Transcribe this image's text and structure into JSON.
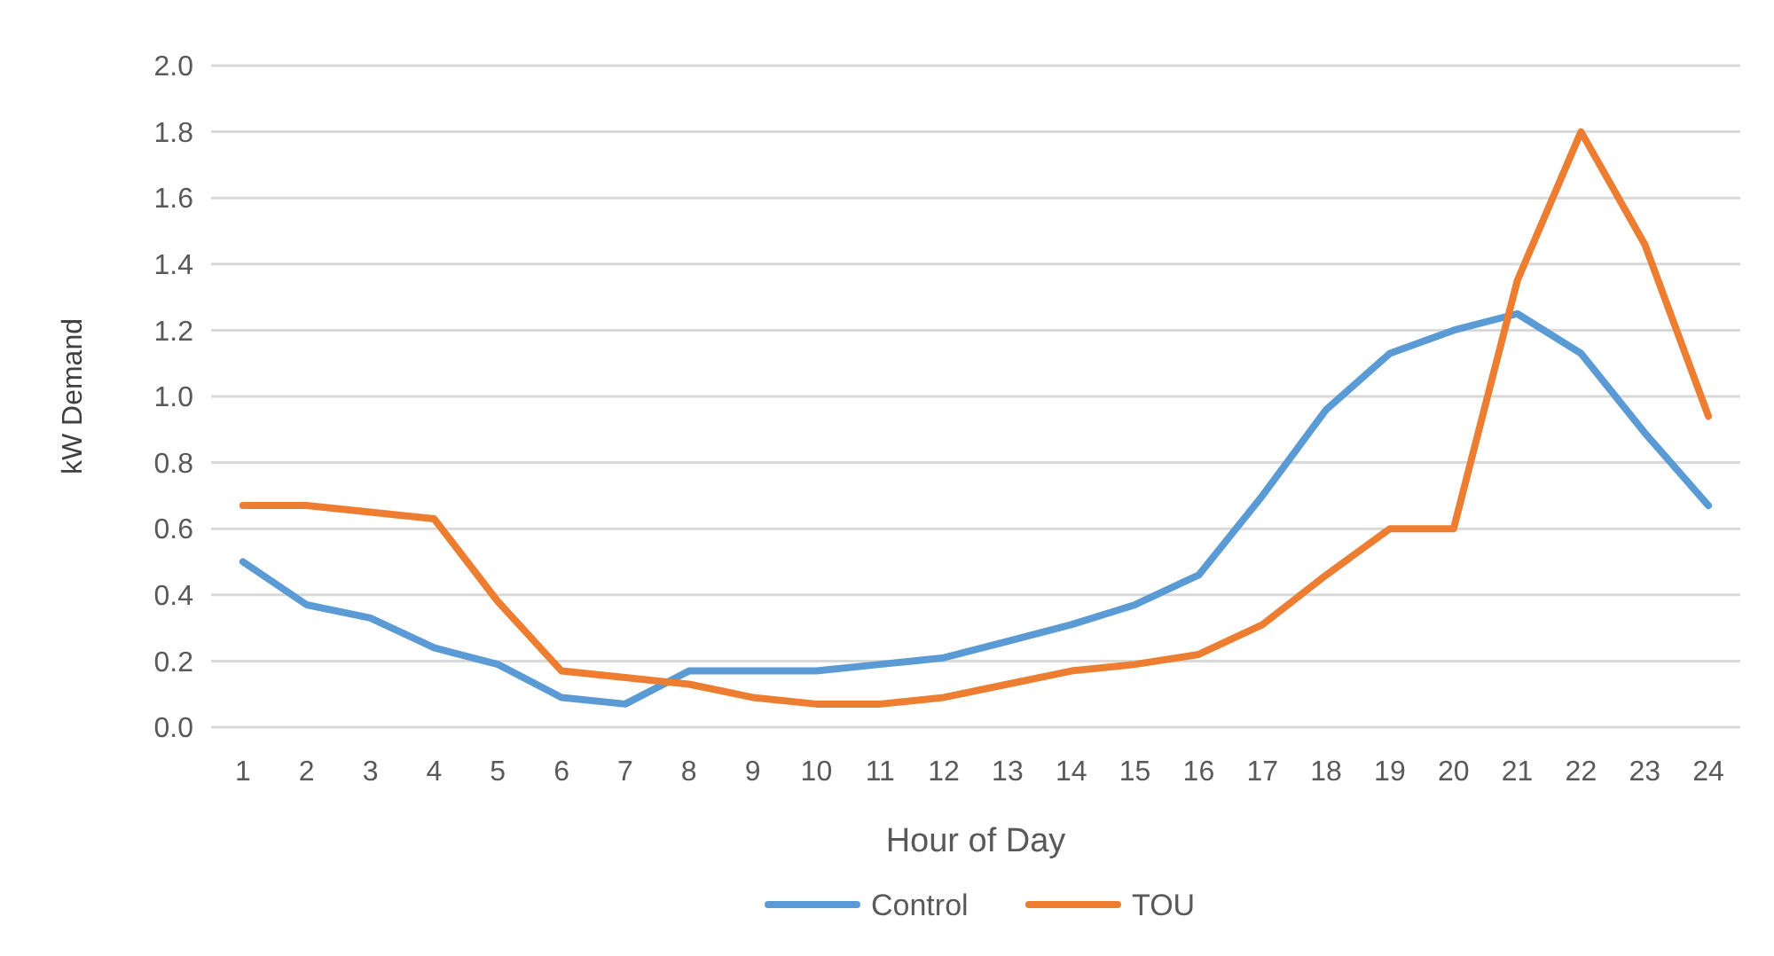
{
  "chart_data": {
    "type": "line",
    "xlabel": "Hour of Day",
    "ylabel": "kW Demand",
    "x": [
      1,
      2,
      3,
      4,
      5,
      6,
      7,
      8,
      9,
      10,
      11,
      12,
      13,
      14,
      15,
      16,
      17,
      18,
      19,
      20,
      21,
      22,
      23,
      24
    ],
    "xlim": [
      0.5,
      24.5
    ],
    "xticks": [
      1,
      2,
      3,
      4,
      5,
      6,
      7,
      8,
      9,
      10,
      11,
      12,
      13,
      14,
      15,
      16,
      17,
      18,
      19,
      20,
      21,
      22,
      23,
      24
    ],
    "series": [
      {
        "name": "Control",
        "color": "#5b9bd5",
        "values": [
          0.5,
          0.37,
          0.33,
          0.24,
          0.19,
          0.09,
          0.07,
          0.17,
          0.17,
          0.17,
          0.19,
          0.21,
          0.26,
          0.31,
          0.37,
          0.46,
          0.7,
          0.96,
          1.13,
          1.2,
          1.25,
          1.13,
          0.89,
          0.67
        ]
      },
      {
        "name": "TOU",
        "color": "#ed7d31",
        "values": [
          0.67,
          0.67,
          0.65,
          0.63,
          0.38,
          0.17,
          0.15,
          0.13,
          0.09,
          0.07,
          0.07,
          0.09,
          0.13,
          0.17,
          0.19,
          0.22,
          0.31,
          0.46,
          0.6,
          0.6,
          1.35,
          1.8,
          1.46,
          0.94
        ]
      }
    ],
    "ylim": [
      0,
      2
    ],
    "yticks": [
      {
        "value": 0,
        "label": "0.0"
      },
      {
        "value": 0.2,
        "label": "0.2"
      },
      {
        "value": 0.4,
        "label": "0.4"
      },
      {
        "value": 0.6,
        "label": "0.6"
      },
      {
        "value": 0.8,
        "label": "0.8"
      },
      {
        "value": 1,
        "label": "1.0"
      },
      {
        "value": 1.2,
        "label": "1.2"
      },
      {
        "value": 1.4,
        "label": "1.4"
      },
      {
        "value": 1.6,
        "label": "1.6"
      },
      {
        "value": 1.8,
        "label": "1.8"
      },
      {
        "value": 2,
        "label": "2.0"
      }
    ],
    "grid": "y",
    "legend": "bottom",
    "marker": "none",
    "line_style": "solid"
  }
}
